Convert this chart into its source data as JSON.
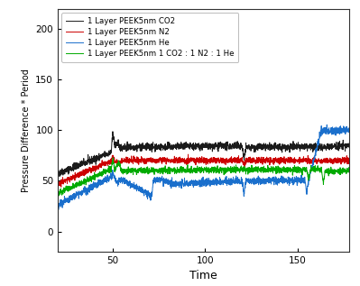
{
  "title": "",
  "xlabel": "Time",
  "ylabel": "Pressure Difference * Period",
  "xlim": [
    20,
    178
  ],
  "ylim": [
    -20,
    220
  ],
  "yticks": [
    0,
    50,
    100,
    150,
    200
  ],
  "xticks": [
    50,
    100,
    150
  ],
  "legend": [
    "1 Layer PEEK5nm CO2",
    "1 Layer PEEK5nm N2",
    "1 Layer PEEK5nm He",
    "1 Layer PEEK5nm 1 CO2 : 1 N2 : 1 He"
  ],
  "colors": [
    "#1a1a1a",
    "#cc0000",
    "#1a6fcc",
    "#00aa00"
  ],
  "background": "#ffffff",
  "figsize": [
    3.99,
    3.17
  ],
  "dpi": 100
}
